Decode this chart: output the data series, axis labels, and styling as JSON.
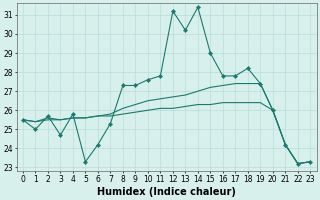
{
  "xlabel": "Humidex (Indice chaleur)",
  "x": [
    0,
    1,
    2,
    3,
    4,
    5,
    6,
    7,
    8,
    9,
    10,
    11,
    12,
    13,
    14,
    15,
    16,
    17,
    18,
    19,
    20,
    21,
    22,
    23
  ],
  "line1": [
    25.5,
    25.0,
    25.7,
    24.7,
    25.8,
    23.3,
    24.2,
    25.3,
    27.3,
    27.3,
    27.6,
    27.8,
    31.2,
    30.2,
    31.4,
    29.0,
    27.8,
    27.8,
    28.2,
    27.4,
    26.0,
    24.2,
    23.2,
    23.3
  ],
  "line2": [
    25.5,
    25.4,
    25.6,
    25.5,
    25.6,
    25.6,
    25.7,
    25.8,
    26.1,
    26.3,
    26.5,
    26.6,
    26.7,
    26.8,
    27.0,
    27.2,
    27.3,
    27.4,
    27.4,
    27.4,
    26.0,
    24.2,
    23.2,
    23.3
  ],
  "line3": [
    25.5,
    25.4,
    25.5,
    25.5,
    25.6,
    25.6,
    25.7,
    25.7,
    25.8,
    25.9,
    26.0,
    26.1,
    26.1,
    26.2,
    26.3,
    26.3,
    26.4,
    26.4,
    26.4,
    26.4,
    26.0,
    24.2,
    23.2,
    23.3
  ],
  "color": "#1a7a6e",
  "bg_color": "#d8f0ec",
  "grid_color": "#b8ddd8",
  "ylim_min": 22.8,
  "ylim_max": 31.6,
  "yticks": [
    23,
    24,
    25,
    26,
    27,
    28,
    29,
    30,
    31
  ],
  "xticks": [
    0,
    1,
    2,
    3,
    4,
    5,
    6,
    7,
    8,
    9,
    10,
    11,
    12,
    13,
    14,
    15,
    16,
    17,
    18,
    19,
    20,
    21,
    22,
    23
  ],
  "tick_fontsize": 5.5,
  "label_fontsize": 7.0
}
